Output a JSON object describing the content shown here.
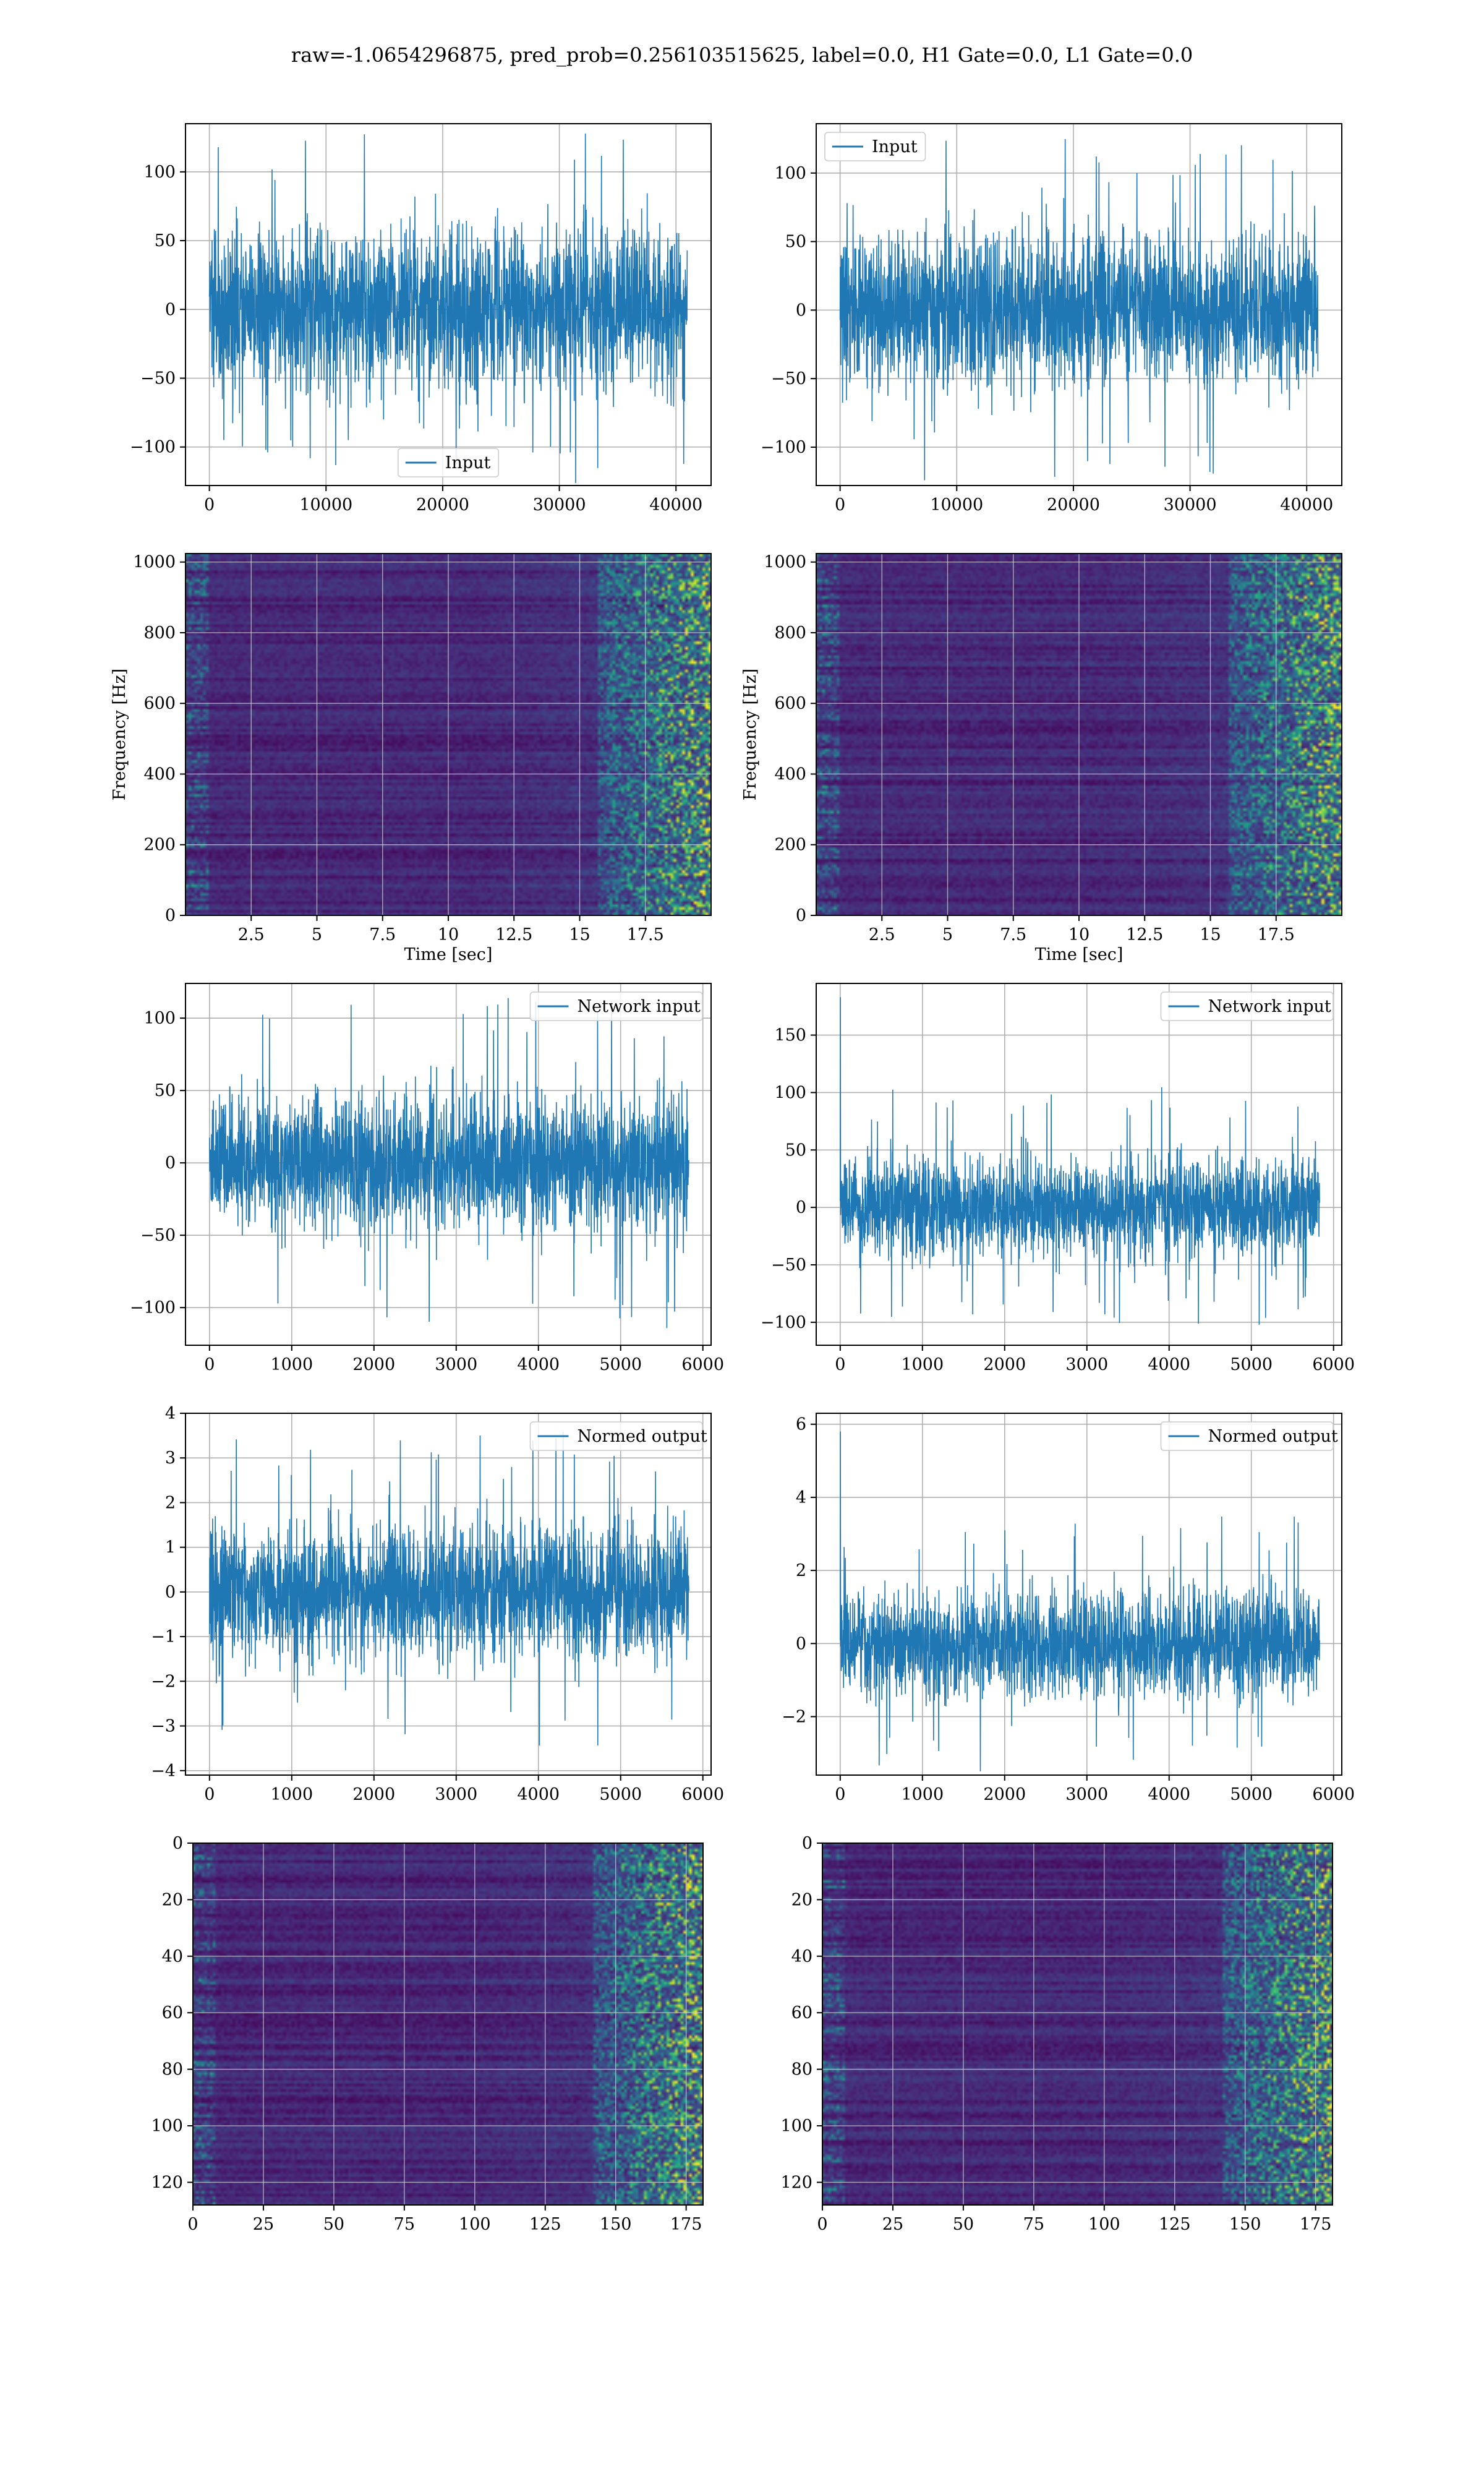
{
  "figure": {
    "title": "raw=-1.0654296875, pred_prob=0.256103515625, label=0.0, H1 Gate=0.0, L1 Gate=0.0"
  },
  "colors": {
    "line": "#1f77b4",
    "grid": "#b0b0b0",
    "viridis_low": "#440154",
    "viridis_mid": "#21918c",
    "viridis_high": "#fde725"
  },
  "chart_data": [
    {
      "id": "row1-left",
      "type": "line",
      "title": "",
      "xlabel": "",
      "ylabel": "",
      "xlim": [
        -2048,
        43008
      ],
      "ylim": [
        -128,
        135
      ],
      "xticks": [
        0,
        10000,
        20000,
        30000,
        40000
      ],
      "yticks": [
        -100,
        -50,
        0,
        50,
        100
      ],
      "legend": {
        "entries": [
          "Input"
        ],
        "position": "lower-center"
      },
      "series": [
        {
          "name": "Input",
          "n_points": 40960,
          "x_range": [
            0,
            40960
          ],
          "amplitude_typical": 70,
          "amplitude_peak": 130
        }
      ]
    },
    {
      "id": "row1-right",
      "type": "line",
      "title": "",
      "xlabel": "",
      "ylabel": "",
      "xlim": [
        -2048,
        43008
      ],
      "ylim": [
        -128,
        136
      ],
      "xticks": [
        0,
        10000,
        20000,
        30000,
        40000
      ],
      "yticks": [
        -100,
        -50,
        0,
        50,
        100
      ],
      "legend": {
        "entries": [
          "Input"
        ],
        "position": "top-left"
      },
      "series": [
        {
          "name": "Input",
          "n_points": 40960,
          "x_range": [
            0,
            40960
          ],
          "amplitude_typical": 65,
          "amplitude_peak": 125
        }
      ]
    },
    {
      "id": "row2-left",
      "type": "heatmap",
      "title": "",
      "xlabel": "Time [sec]",
      "ylabel": "Frequency [Hz]",
      "xlim": [
        0,
        20
      ],
      "ylim": [
        0,
        1024
      ],
      "xticks": [
        2.5,
        5.0,
        7.5,
        10.0,
        12.5,
        15.0,
        17.5
      ],
      "yticks": [
        0,
        200,
        400,
        600,
        800,
        1000
      ],
      "colormap": "viridis",
      "description_values": "noise spectrogram, mostly low intensity with scattered bright pixels"
    },
    {
      "id": "row2-right",
      "type": "heatmap",
      "title": "",
      "xlabel": "Time [sec]",
      "ylabel": "Frequency [Hz]",
      "xlim": [
        0,
        20
      ],
      "ylim": [
        0,
        1024
      ],
      "xticks": [
        2.5,
        5.0,
        7.5,
        10.0,
        12.5,
        15.0,
        17.5
      ],
      "yticks": [
        0,
        200,
        400,
        600,
        800,
        1000
      ],
      "colormap": "viridis",
      "description_values": "noise spectrogram, mostly low intensity"
    },
    {
      "id": "row3-left",
      "type": "line",
      "title": "",
      "xlabel": "",
      "ylabel": "",
      "xlim": [
        -292,
        6100
      ],
      "ylim": [
        -126,
        124
      ],
      "xticks": [
        0,
        1000,
        2000,
        3000,
        4000,
        5000,
        6000
      ],
      "yticks": [
        -100,
        -50,
        0,
        50,
        100
      ],
      "legend": {
        "entries": [
          "Network input"
        ],
        "position": "top-right"
      },
      "series": [
        {
          "name": "Network input",
          "n_points": 5830,
          "x_range": [
            0,
            5830
          ],
          "amplitude_typical": 55,
          "amplitude_peak": 115
        }
      ]
    },
    {
      "id": "row3-right",
      "type": "line",
      "title": "",
      "xlabel": "",
      "ylabel": "",
      "xlim": [
        -292,
        6100
      ],
      "ylim": [
        -120,
        195
      ],
      "xticks": [
        0,
        1000,
        2000,
        3000,
        4000,
        5000,
        6000
      ],
      "yticks": [
        -100,
        -50,
        0,
        50,
        100,
        150
      ],
      "legend": {
        "entries": [
          "Network input"
        ],
        "position": "top-right"
      },
      "series": [
        {
          "name": "Network input",
          "n_points": 5830,
          "x_range": [
            0,
            5830
          ],
          "amplitude_typical": 50,
          "amplitude_peak": 105,
          "initial_spike": 183
        }
      ]
    },
    {
      "id": "row4-left",
      "type": "line",
      "title": "",
      "xlabel": "",
      "ylabel": "",
      "xlim": [
        -292,
        6100
      ],
      "ylim": [
        -4.1,
        4.0
      ],
      "xticks": [
        0,
        1000,
        2000,
        3000,
        4000,
        5000,
        6000
      ],
      "yticks": [
        -4,
        -3,
        -2,
        -1,
        0,
        1,
        2,
        3,
        4
      ],
      "legend": {
        "entries": [
          "Normed output"
        ],
        "position": "top-right"
      },
      "series": [
        {
          "name": "Normed output",
          "n_points": 5830,
          "x_range": [
            0,
            5830
          ],
          "amplitude_typical": 1.8,
          "amplitude_peak": 3.6
        }
      ]
    },
    {
      "id": "row4-right",
      "type": "line",
      "title": "",
      "xlabel": "",
      "ylabel": "",
      "xlim": [
        -292,
        6100
      ],
      "ylim": [
        -3.6,
        6.3
      ],
      "xticks": [
        0,
        1000,
        2000,
        3000,
        4000,
        5000,
        6000
      ],
      "yticks": [
        -2,
        0,
        2,
        4,
        6
      ],
      "legend": {
        "entries": [
          "Normed output"
        ],
        "position": "top-right"
      },
      "series": [
        {
          "name": "Normed output",
          "n_points": 5830,
          "x_range": [
            0,
            5830
          ],
          "amplitude_typical": 1.7,
          "amplitude_peak": 3.5,
          "initial_spike": 5.8
        }
      ]
    },
    {
      "id": "row5-left",
      "type": "heatmap",
      "title": "",
      "xlabel": "",
      "ylabel": "",
      "xlim": [
        0,
        181
      ],
      "ylim": [
        128,
        0
      ],
      "xticks": [
        0,
        25,
        50,
        75,
        100,
        125,
        150,
        175
      ],
      "yticks": [
        0,
        20,
        40,
        60,
        80,
        100,
        120
      ],
      "colormap": "viridis",
      "description_values": "feature map, dark overall with bright activity near columns 150-181"
    },
    {
      "id": "row5-right",
      "type": "heatmap",
      "title": "",
      "xlabel": "",
      "ylabel": "",
      "xlim": [
        0,
        181
      ],
      "ylim": [
        128,
        0
      ],
      "xticks": [
        0,
        25,
        50,
        75,
        100,
        125,
        150,
        175
      ],
      "yticks": [
        0,
        20,
        40,
        60,
        80,
        100,
        120
      ],
      "colormap": "viridis",
      "description_values": "feature map, dark overall with bright activity near columns 140-181"
    }
  ]
}
